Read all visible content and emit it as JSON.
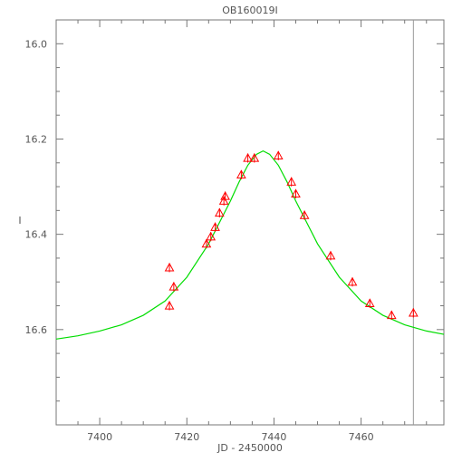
{
  "chart_data": {
    "type": "scatter",
    "title": "OB160019I",
    "xlabel": "JD - 2450000",
    "ylabel": "I",
    "xlim": [
      7390,
      7479
    ],
    "ylim": [
      16.8,
      15.95
    ],
    "y_inverted": true,
    "x_ticks": [
      "7400",
      "7420",
      "7440",
      "7460"
    ],
    "y_ticks": [
      "16.0",
      "16.2",
      "16.4",
      "16.6"
    ],
    "x_tick_values": [
      7400,
      7420,
      7440,
      7460
    ],
    "y_tick_values": [
      16.0,
      16.2,
      16.4,
      16.6
    ],
    "reference_line_x": 7472,
    "series": [
      {
        "kind": "points",
        "marker": "triangle",
        "color": "#ff0000",
        "x": [
          7416.0,
          7416.0,
          7417.0,
          7424.5,
          7425.5,
          7426.5,
          7427.5,
          7428.5,
          7428.8,
          7432.5,
          7434.0,
          7435.5,
          7441.0,
          7444.0,
          7445.0,
          7447.0,
          7453.0,
          7458.0,
          7462.0,
          7467.0,
          7472.0
        ],
        "y": [
          16.47,
          16.55,
          16.51,
          16.42,
          16.405,
          16.385,
          16.355,
          16.33,
          16.32,
          16.275,
          16.24,
          16.24,
          16.235,
          16.29,
          16.315,
          16.36,
          16.445,
          16.5,
          16.545,
          16.57,
          16.565
        ]
      },
      {
        "kind": "line",
        "color": "#00dd00",
        "x": [
          7390,
          7395,
          7400,
          7405,
          7410,
          7415,
          7420,
          7425,
          7430,
          7432,
          7434,
          7436,
          7437.5,
          7439,
          7441,
          7443,
          7445,
          7450,
          7455,
          7460,
          7465,
          7470,
          7475,
          7479
        ],
        "y": [
          16.62,
          16.613,
          16.603,
          16.59,
          16.57,
          16.54,
          16.49,
          16.42,
          16.33,
          16.29,
          16.255,
          16.232,
          16.225,
          16.232,
          16.255,
          16.29,
          16.33,
          16.42,
          16.49,
          16.54,
          16.57,
          16.59,
          16.603,
          16.61
        ]
      }
    ],
    "grid": false
  }
}
